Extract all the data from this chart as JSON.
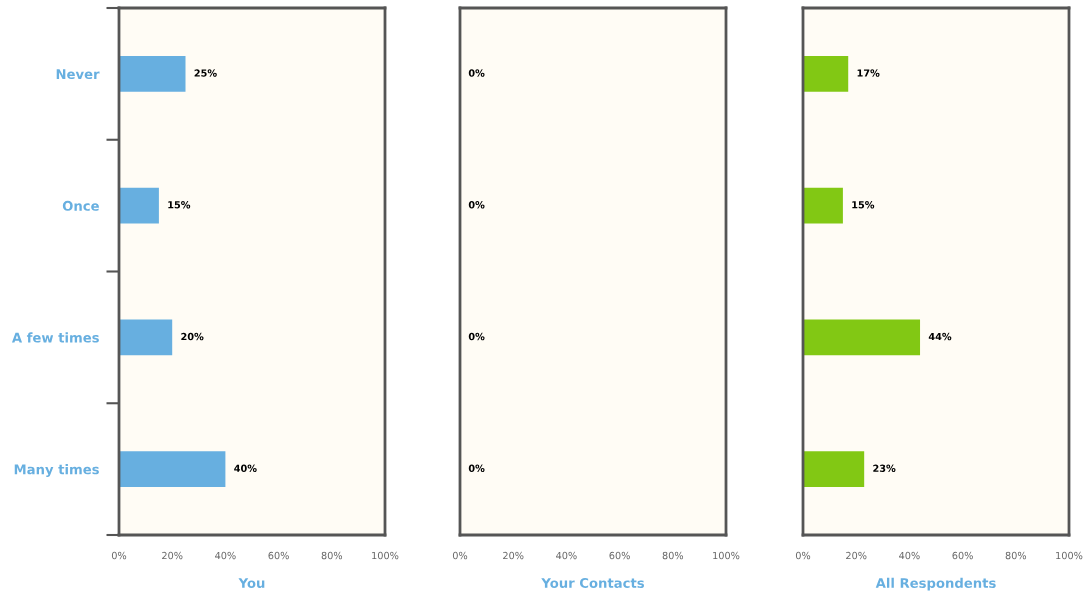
{
  "chart_data": [
    {
      "type": "bar",
      "orientation": "horizontal",
      "xlabel": "You",
      "categories": [
        "Never",
        "Once",
        "A few times",
        "Many times"
      ],
      "values": [
        25,
        15,
        20,
        40
      ],
      "value_labels": [
        "25%",
        "15%",
        "20%",
        "40%"
      ],
      "color": "#67afe0",
      "xlim": [
        0,
        100
      ],
      "xticks": [
        {
          "value": 0,
          "label": "0%"
        },
        {
          "value": 20,
          "label": "20%"
        },
        {
          "value": 40,
          "label": "40%"
        },
        {
          "value": 60,
          "label": "60%"
        },
        {
          "value": 80,
          "label": "80%"
        },
        {
          "value": 100,
          "label": "100%"
        }
      ],
      "grid": false,
      "legend": false
    },
    {
      "type": "bar",
      "orientation": "horizontal",
      "xlabel": "Your Contacts",
      "categories": [
        null,
        null,
        null,
        null
      ],
      "values": [
        0,
        0,
        0,
        0
      ],
      "value_labels": [
        "0%",
        "0%",
        "0%",
        "0%"
      ],
      "color": "#67afe0",
      "xlim": [
        0,
        100
      ],
      "xticks": [
        {
          "value": 0,
          "label": "0%"
        },
        {
          "value": 20,
          "label": "20%"
        },
        {
          "value": 40,
          "label": "40%"
        },
        {
          "value": 60,
          "label": "60%"
        },
        {
          "value": 80,
          "label": "80%"
        },
        {
          "value": 100,
          "label": "100%"
        }
      ],
      "tick_labels": "x",
      "grid": false,
      "legend": false
    },
    {
      "type": "bar",
      "orientation": "horizontal",
      "xlabel": "All Respondents",
      "categories": [
        null,
        null,
        null,
        null
      ],
      "values": [
        17,
        15,
        44,
        23
      ],
      "value_labels": [
        "17%",
        "15%",
        "44%",
        "23%"
      ],
      "color": "#82c814",
      "xlim": [
        0,
        100
      ],
      "xticks": [
        {
          "value": 0,
          "label": "0%"
        },
        {
          "value": 20,
          "label": "20%"
        },
        {
          "value": 40,
          "label": "40%"
        },
        {
          "value": 60,
          "label": "60%"
        },
        {
          "value": 80,
          "label": "80%"
        },
        {
          "value": 100,
          "label": "100%"
        }
      ],
      "tick_labels": "x",
      "grid": false,
      "legend": false
    }
  ]
}
